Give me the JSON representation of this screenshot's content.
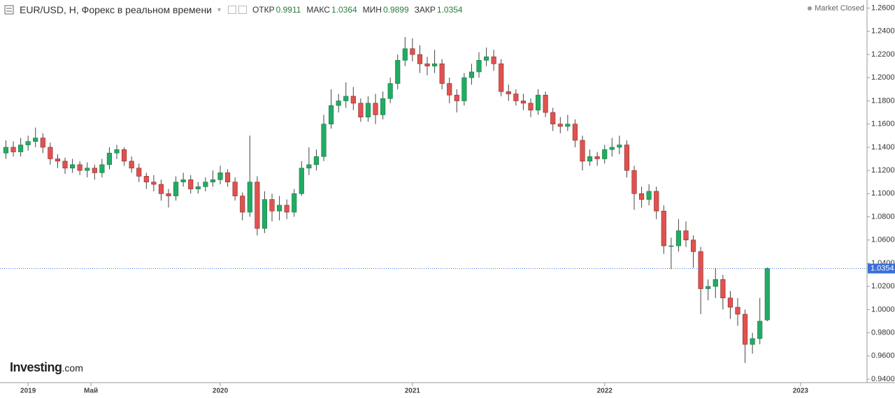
{
  "chart_data": {
    "type": "candlestick",
    "title": "EUR/USD, H, Форекс в реальном времени",
    "ohlc_labels": [
      "ОТКР",
      "МАКС",
      "МИН",
      "ЗАКР"
    ],
    "status": "Market Closed",
    "brand": "Investing",
    "brand_suffix": ".com",
    "up_color": "#22ab63",
    "down_color": "#e0524f",
    "last_price_color": "#3b6ed8",
    "x": [
      -6,
      -4,
      -2,
      0,
      2,
      4,
      6,
      8,
      10,
      12,
      14,
      16,
      18,
      20,
      22,
      24,
      26,
      28,
      30,
      32,
      34,
      36,
      38,
      40,
      42,
      44,
      46,
      48,
      50,
      52,
      54,
      56,
      58,
      60,
      62,
      64,
      66,
      68,
      70,
      72,
      74,
      76,
      78,
      80,
      82,
      84,
      86,
      88,
      90,
      92,
      94,
      96,
      98,
      100,
      102,
      104,
      106,
      108,
      110,
      112,
      114,
      116,
      118,
      120,
      122,
      124,
      126,
      128,
      130,
      132,
      134,
      136,
      138,
      140,
      142,
      144,
      146,
      148,
      150,
      152,
      154,
      156,
      158,
      160,
      162,
      164,
      166,
      168,
      170,
      172,
      174,
      176,
      178,
      180,
      182,
      184,
      186,
      188,
      190,
      192,
      194,
      196,
      198,
      200
    ],
    "open": [
      1.135,
      1.14,
      1.136,
      1.142,
      1.145,
      1.148,
      1.14,
      1.13,
      1.128,
      1.122,
      1.125,
      1.12,
      1.122,
      1.118,
      1.125,
      1.135,
      1.138,
      1.128,
      1.122,
      1.115,
      1.11,
      1.108,
      1.1,
      1.098,
      1.11,
      1.112,
      1.104,
      1.106,
      1.11,
      1.112,
      1.118,
      1.11,
      1.098,
      1.084,
      1.11,
      1.07,
      1.095,
      1.085,
      1.09,
      1.084,
      1.1,
      1.122,
      1.125,
      1.132,
      1.16,
      1.176,
      1.18,
      1.184,
      1.178,
      1.166,
      1.178,
      1.168,
      1.182,
      1.195,
      1.215,
      1.225,
      1.22,
      1.212,
      1.21,
      1.212,
      1.195,
      1.185,
      1.18,
      1.2,
      1.205,
      1.215,
      1.218,
      1.212,
      1.188,
      1.186,
      1.18,
      1.178,
      1.172,
      1.185,
      1.17,
      1.16,
      1.158,
      1.16,
      1.146,
      1.128,
      1.132,
      1.13,
      1.138,
      1.14,
      1.142,
      1.12,
      1.1,
      1.095,
      1.102,
      1.085,
      1.055,
      1.055,
      1.068,
      1.06,
      1.05,
      1.018,
      1.02,
      1.026,
      1.01,
      1.002,
      0.996,
      0.97,
      0.975,
      0.9911
    ],
    "high": [
      1.146,
      1.145,
      1.148,
      1.15,
      1.157,
      1.152,
      1.144,
      1.134,
      1.131,
      1.13,
      1.128,
      1.127,
      1.125,
      1.13,
      1.14,
      1.142,
      1.14,
      1.132,
      1.126,
      1.118,
      1.116,
      1.112,
      1.104,
      1.115,
      1.118,
      1.116,
      1.11,
      1.114,
      1.12,
      1.124,
      1.121,
      1.114,
      1.101,
      1.15,
      1.115,
      1.102,
      1.1,
      1.098,
      1.095,
      1.104,
      1.128,
      1.14,
      1.138,
      1.168,
      1.19,
      1.186,
      1.196,
      1.192,
      1.182,
      1.184,
      1.186,
      1.188,
      1.2,
      1.22,
      1.235,
      1.234,
      1.228,
      1.218,
      1.224,
      1.216,
      1.2,
      1.19,
      1.204,
      1.212,
      1.222,
      1.226,
      1.224,
      1.216,
      1.194,
      1.19,
      1.186,
      1.182,
      1.19,
      1.188,
      1.174,
      1.166,
      1.168,
      1.164,
      1.15,
      1.138,
      1.136,
      1.142,
      1.148,
      1.15,
      1.146,
      1.124,
      1.106,
      1.108,
      1.106,
      1.09,
      1.062,
      1.078,
      1.076,
      1.064,
      1.054,
      1.026,
      1.036,
      1.03,
      1.016,
      1.01,
      1.0,
      0.98,
      1.01,
      1.0364
    ],
    "low": [
      1.13,
      1.132,
      1.132,
      1.137,
      1.14,
      1.135,
      1.125,
      1.122,
      1.117,
      1.118,
      1.116,
      1.114,
      1.112,
      1.114,
      1.121,
      1.13,
      1.124,
      1.118,
      1.11,
      1.104,
      1.102,
      1.094,
      1.088,
      1.094,
      1.106,
      1.1,
      1.1,
      1.102,
      1.106,
      1.108,
      1.106,
      1.094,
      1.077,
      1.08,
      1.064,
      1.066,
      1.076,
      1.077,
      1.078,
      1.08,
      1.098,
      1.116,
      1.12,
      1.128,
      1.156,
      1.17,
      1.174,
      1.172,
      1.162,
      1.162,
      1.16,
      1.164,
      1.178,
      1.19,
      1.21,
      1.214,
      1.204,
      1.202,
      1.204,
      1.19,
      1.178,
      1.17,
      1.176,
      1.194,
      1.2,
      1.21,
      1.206,
      1.184,
      1.18,
      1.176,
      1.172,
      1.166,
      1.168,
      1.166,
      1.154,
      1.152,
      1.154,
      1.14,
      1.12,
      1.124,
      1.124,
      1.126,
      1.132,
      1.134,
      1.114,
      1.086,
      1.088,
      1.09,
      1.078,
      1.048,
      1.035,
      1.05,
      1.054,
      1.036,
      0.996,
      1.008,
      1.01,
      1.0,
      0.992,
      0.986,
      0.954,
      0.962,
      0.97,
      0.9899
    ],
    "close": [
      1.14,
      1.136,
      1.142,
      1.145,
      1.148,
      1.14,
      1.13,
      1.128,
      1.122,
      1.125,
      1.12,
      1.122,
      1.118,
      1.125,
      1.135,
      1.138,
      1.128,
      1.122,
      1.115,
      1.11,
      1.108,
      1.1,
      1.098,
      1.11,
      1.112,
      1.104,
      1.106,
      1.11,
      1.112,
      1.118,
      1.11,
      1.098,
      1.084,
      1.11,
      1.07,
      1.095,
      1.085,
      1.09,
      1.084,
      1.1,
      1.122,
      1.125,
      1.132,
      1.16,
      1.176,
      1.18,
      1.184,
      1.178,
      1.166,
      1.178,
      1.168,
      1.182,
      1.195,
      1.215,
      1.225,
      1.22,
      1.212,
      1.21,
      1.212,
      1.195,
      1.185,
      1.18,
      1.2,
      1.205,
      1.215,
      1.218,
      1.212,
      1.188,
      1.186,
      1.18,
      1.178,
      1.172,
      1.185,
      1.17,
      1.16,
      1.158,
      1.16,
      1.146,
      1.128,
      1.132,
      1.13,
      1.138,
      1.14,
      1.142,
      1.12,
      1.1,
      1.095,
      1.102,
      1.085,
      1.055,
      1.055,
      1.068,
      1.06,
      1.05,
      1.018,
      1.02,
      1.026,
      1.01,
      1.002,
      0.996,
      0.97,
      0.975,
      0.99,
      1.0354
    ],
    "xlim": [
      -7.6,
      227
    ],
    "xticks": [
      {
        "value": 0,
        "label": "2019"
      },
      {
        "value": 17,
        "label": "Май"
      },
      {
        "value": 52,
        "label": "2020"
      },
      {
        "value": 104,
        "label": "2021"
      },
      {
        "value": 156,
        "label": "2022"
      },
      {
        "value": 209,
        "label": "2023"
      }
    ],
    "ylim": [
      0.937,
      1.267
    ],
    "yticks": [
      {
        "value": 0.94,
        "label": "0.9400"
      },
      {
        "value": 0.96,
        "label": "0.9600"
      },
      {
        "value": 0.98,
        "label": "0.9800"
      },
      {
        "value": 1.0,
        "label": "1.0000"
      },
      {
        "value": 1.02,
        "label": "1.0200"
      },
      {
        "value": 1.04,
        "label": "1.0400"
      },
      {
        "value": 1.06,
        "label": "1.0600"
      },
      {
        "value": 1.08,
        "label": "1.0800"
      },
      {
        "value": 1.1,
        "label": "1.1000"
      },
      {
        "value": 1.12,
        "label": "1.1200"
      },
      {
        "value": 1.14,
        "label": "1.1400"
      },
      {
        "value": 1.16,
        "label": "1.1600"
      },
      {
        "value": 1.18,
        "label": "1.1800"
      },
      {
        "value": 1.2,
        "label": "1.2000"
      },
      {
        "value": 1.22,
        "label": "1.2200"
      },
      {
        "value": 1.24,
        "label": "1.2400"
      },
      {
        "value": 1.26,
        "label": "1.2600"
      }
    ]
  }
}
